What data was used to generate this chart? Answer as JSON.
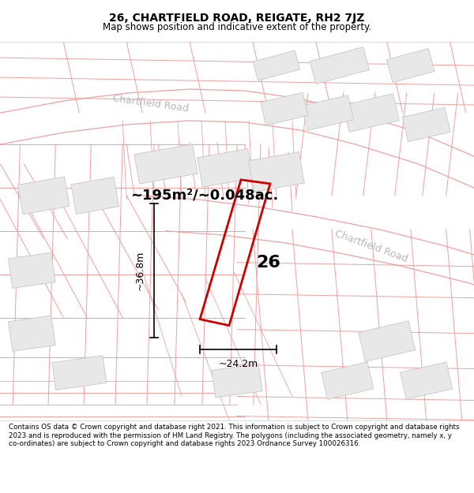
{
  "title": "26, CHARTFIELD ROAD, REIGATE, RH2 7JZ",
  "subtitle": "Map shows position and indicative extent of the property.",
  "footer_text": "Contains OS data © Crown copyright and database right 2021. This information is subject to Crown copyright and database rights 2023 and is reproduced with the permission of HM Land Registry. The polygons (including the associated geometry, namely x, y co-ordinates) are subject to Crown copyright and database rights 2023 Ordnance Survey 100026316.",
  "area_text": "~195m²/~0.048ac.",
  "label_26": "26",
  "dim_height": "~36.8m",
  "dim_width": "~24.2m",
  "road_label_upper": "Chartfield Road",
  "road_label_lower": "Chartfield Road",
  "map_bg": "#ffffff",
  "building_fill": "#e8e8e8",
  "building_edge": "#c0c0c0",
  "road_line_color": "#f0a0a0",
  "property_line_color": "#cc0000",
  "title_size": 10,
  "subtitle_size": 8.5,
  "area_fontsize": 13,
  "label_fontsize": 16,
  "dim_fontsize": 9,
  "road_label_color": "#b8b8b8",
  "road_label_size": 9
}
